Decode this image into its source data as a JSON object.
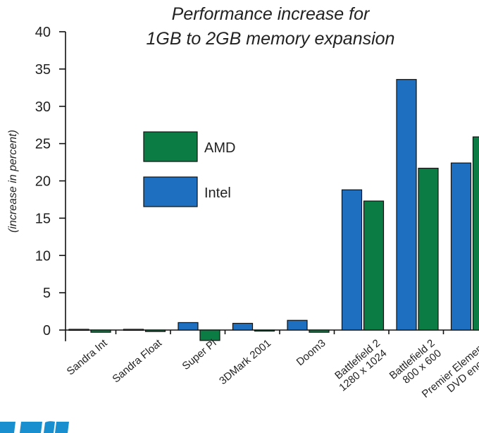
{
  "chart_data": {
    "type": "bar",
    "title": [
      "Performance increase for",
      "1GB to 2GB memory expansion"
    ],
    "ylabel": "(increase in percent)",
    "ylim": [
      -1.5,
      40
    ],
    "yticks": [
      0,
      5,
      10,
      15,
      20,
      25,
      30,
      35,
      40
    ],
    "categories": [
      [
        "Sandra Int"
      ],
      [
        "Sandra Float"
      ],
      [
        "Super Pi"
      ],
      [
        "3DMark 2001"
      ],
      [
        "Doom3"
      ],
      [
        "Battlefield 2",
        "1280 x 1024"
      ],
      [
        "Battlefield 2",
        "800 x 600"
      ],
      [
        "Premier Elements",
        "DVD encode"
      ]
    ],
    "series": [
      {
        "name": "Intel",
        "color": "#1f6fc0",
        "values": [
          0.1,
          0.1,
          1.0,
          0.9,
          1.3,
          18.8,
          33.6,
          22.4
        ]
      },
      {
        "name": "AMD",
        "color": "#0a7c44",
        "values": [
          -0.3,
          -0.2,
          -1.4,
          -0.1,
          -0.3,
          17.3,
          21.7,
          25.9
        ]
      }
    ],
    "legend": {
      "placement": "center-left",
      "entries": [
        {
          "name": "AMD",
          "color": "#0a7c44"
        },
        {
          "name": "Intel",
          "color": "#1f6fc0"
        }
      ]
    },
    "grid": false
  },
  "logo_color": "#1a8fd0"
}
